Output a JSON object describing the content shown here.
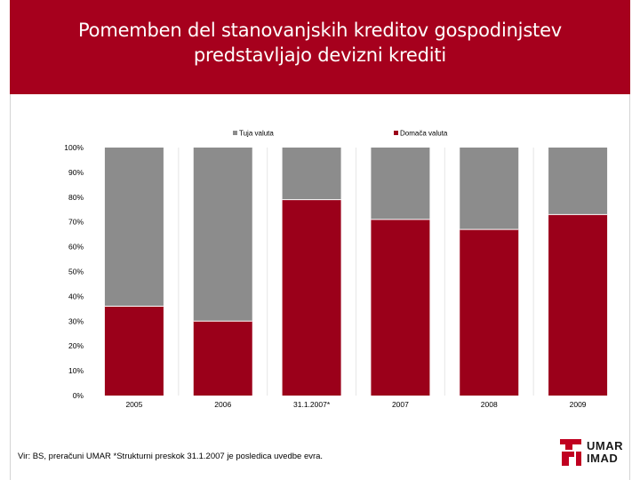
{
  "title": {
    "line1": "Pomemben del stanovanjskih kreditov gospodinjstev",
    "line2": "predstavljajo devizni krediti"
  },
  "chart_data": {
    "type": "bar",
    "stacked": true,
    "percent_stacked": true,
    "categories": [
      "2005",
      "2006",
      "31.1.2007*",
      "2007",
      "2008",
      "2009"
    ],
    "series": [
      {
        "name": "Domača valuta",
        "color": "#9b001a",
        "values": [
          36,
          30,
          79,
          71,
          67,
          73
        ]
      },
      {
        "name": "Tuja valuta",
        "color": "#8c8c8c",
        "values": [
          64,
          70,
          21,
          29,
          33,
          27
        ]
      }
    ],
    "yticks": [
      "0%",
      "10%",
      "20%",
      "30%",
      "40%",
      "50%",
      "60%",
      "70%",
      "80%",
      "90%",
      "100%"
    ],
    "ylim": [
      0,
      100
    ],
    "legend_position": "top",
    "grid": false
  },
  "source_note": "Vir: BS, preračuni UMAR *Strukturni preskok 31.1.2007 je posledica uvedbe  evra.",
  "logo": {
    "line1": "UMAR",
    "line2": "IMAD"
  },
  "colors": {
    "banner": "#a6001d",
    "domestic": "#9b001a",
    "foreign": "#8c8c8c"
  }
}
